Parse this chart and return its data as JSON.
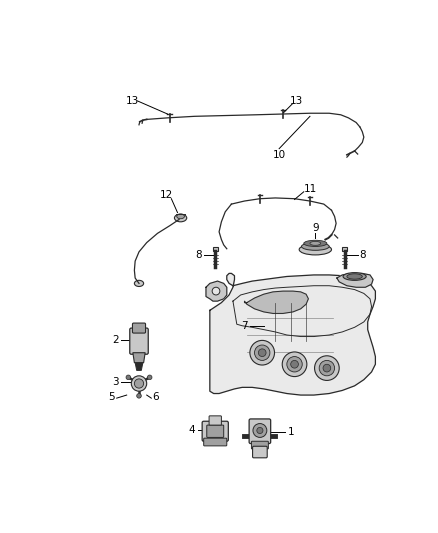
{
  "bg_color": "#ffffff",
  "fig_width": 4.38,
  "fig_height": 5.33,
  "dpi": 100,
  "line_color": "#2a2a2a",
  "gray1": "#c8c8c8",
  "gray2": "#a0a0a0",
  "gray3": "#787878",
  "gray4": "#e5e5e5"
}
